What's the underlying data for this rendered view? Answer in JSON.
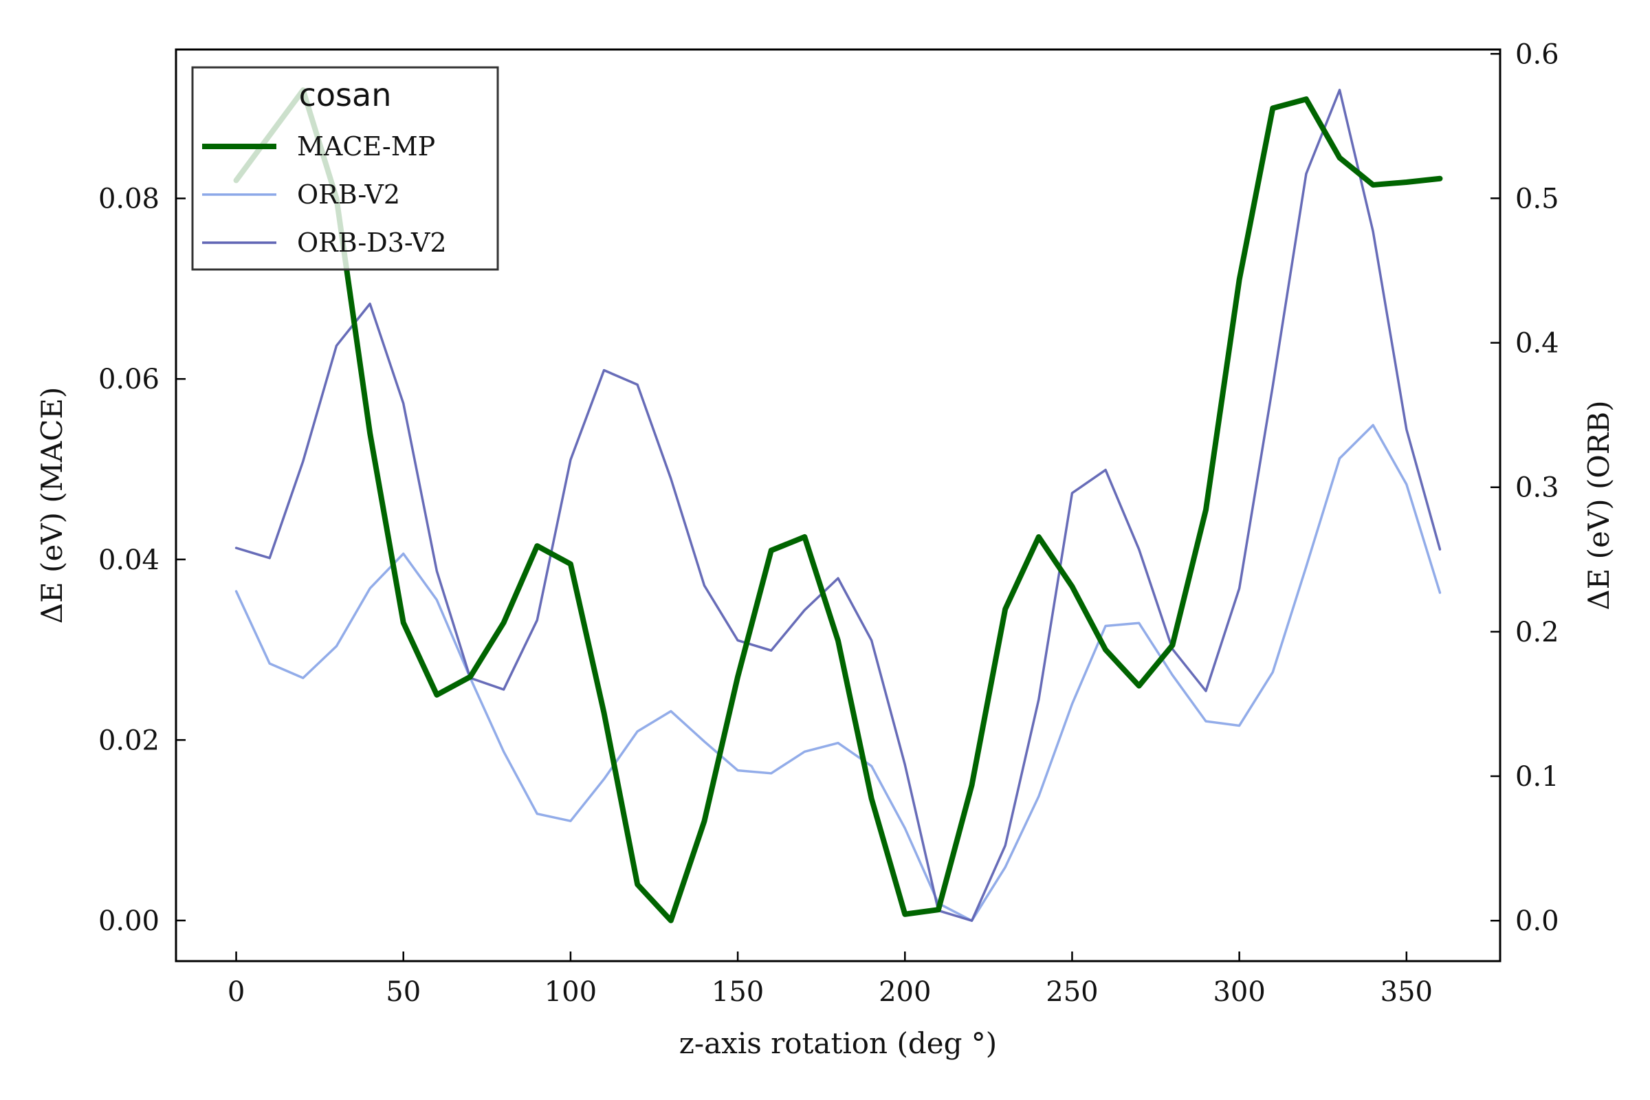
{
  "chart_data": {
    "type": "line",
    "title": "",
    "xlabel": "z-axis rotation (deg °)",
    "ylabel_left": "ΔE (eV) (MACE)",
    "ylabel_right": "ΔE (eV) (ORB)",
    "xlim": [
      -18,
      378
    ],
    "ylim_left": [
      -0.0045,
      0.0965
    ],
    "ylim_right": [
      -0.028,
      0.603
    ],
    "x_ticks": [
      0,
      50,
      100,
      150,
      200,
      250,
      300,
      350
    ],
    "y_ticks_left": [
      "0.00",
      "0.02",
      "0.04",
      "0.06",
      "0.08"
    ],
    "y_ticks_right": [
      "0.0",
      "0.1",
      "0.2",
      "0.3",
      "0.4",
      "0.5",
      "0.6"
    ],
    "legend": {
      "title": "cosan",
      "position": "top-left"
    },
    "grid": false,
    "x": [
      0,
      10,
      20,
      30,
      40,
      50,
      60,
      70,
      80,
      90,
      100,
      110,
      120,
      130,
      140,
      150,
      160,
      170,
      180,
      190,
      200,
      210,
      220,
      230,
      240,
      250,
      260,
      270,
      280,
      290,
      300,
      310,
      320,
      330,
      340,
      350,
      360
    ],
    "series": [
      {
        "name": "MACE-MP",
        "axis": "left",
        "color": "#006400",
        "values": [
          0.082,
          0.087,
          0.092,
          0.08,
          0.054,
          0.033,
          0.025,
          0.027,
          0.033,
          0.0415,
          0.0395,
          0.023,
          0.004,
          0.0,
          0.011,
          0.027,
          0.041,
          0.0425,
          0.031,
          0.0135,
          0.0007,
          0.0012,
          0.015,
          0.0345,
          0.0425,
          0.037,
          0.03,
          0.026,
          0.0305,
          0.0455,
          0.071,
          0.09,
          0.091,
          0.0845,
          0.0815,
          0.0818,
          0.0822
        ]
      },
      {
        "name": "ORB-V2",
        "axis": "right",
        "color": "#8ca8e8",
        "values": [
          0.228,
          0.178,
          0.168,
          0.19,
          0.23,
          0.254,
          0.222,
          0.168,
          0.117,
          0.074,
          0.069,
          0.098,
          0.131,
          0.145,
          0.124,
          0.104,
          0.102,
          0.117,
          0.123,
          0.107,
          0.064,
          0.012,
          0.0,
          0.037,
          0.086,
          0.15,
          0.204,
          0.206,
          0.17,
          0.138,
          0.135,
          0.172,
          0.245,
          0.32,
          0.343,
          0.302,
          0.227
        ]
      },
      {
        "name": "ORB-D3-V2",
        "axis": "right",
        "color": "#5f64b4",
        "values": [
          0.258,
          0.251,
          0.318,
          0.398,
          0.427,
          0.358,
          0.242,
          0.168,
          0.16,
          0.208,
          0.319,
          0.381,
          0.371,
          0.306,
          0.232,
          0.194,
          0.187,
          0.215,
          0.237,
          0.194,
          0.108,
          0.007,
          0.0,
          0.052,
          0.153,
          0.296,
          0.312,
          0.257,
          0.188,
          0.159,
          0.23,
          0.37,
          0.517,
          0.575,
          0.477,
          0.34,
          0.257
        ]
      }
    ]
  }
}
